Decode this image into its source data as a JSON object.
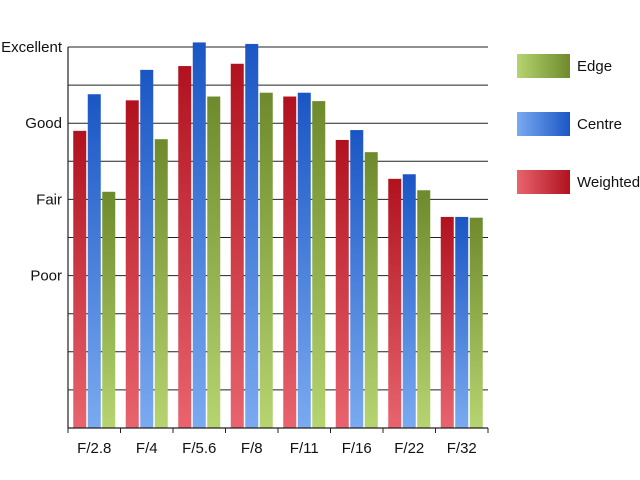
{
  "chart_data": {
    "type": "bar",
    "categories": [
      "F/2.8",
      "F/4",
      "F/5.6",
      "F/8",
      "F/11",
      "F/16",
      "F/22",
      "F/32"
    ],
    "y_tick_labels": [
      {
        "label": "Poor",
        "value": 1
      },
      {
        "label": "Fair",
        "value": 2
      },
      {
        "label": "Good",
        "value": 3
      },
      {
        "label": "Excellent",
        "value": 4
      }
    ],
    "ylim": [
      -1,
      4
    ],
    "grid": true,
    "legend_position": "right",
    "series": [
      {
        "name": "Weighted",
        "values": [
          2.9,
          3.3,
          3.75,
          3.78,
          3.35,
          2.78,
          2.27,
          1.77
        ]
      },
      {
        "name": "Centre",
        "values": [
          3.38,
          3.7,
          4.06,
          4.04,
          3.4,
          2.91,
          2.33,
          1.77
        ]
      },
      {
        "name": "Edge",
        "values": [
          2.1,
          2.79,
          3.35,
          3.4,
          3.29,
          2.62,
          2.12,
          1.76
        ]
      }
    ],
    "legend_order": [
      "Edge",
      "Centre",
      "Weighted"
    ],
    "colors": {
      "Weighted": {
        "light": "#e8646e",
        "dark": "#b0121e"
      },
      "Centre": {
        "light": "#7aaaf0",
        "dark": "#1a56c4"
      },
      "Edge": {
        "light": "#b6d470",
        "dark": "#6e8a2c"
      }
    }
  }
}
